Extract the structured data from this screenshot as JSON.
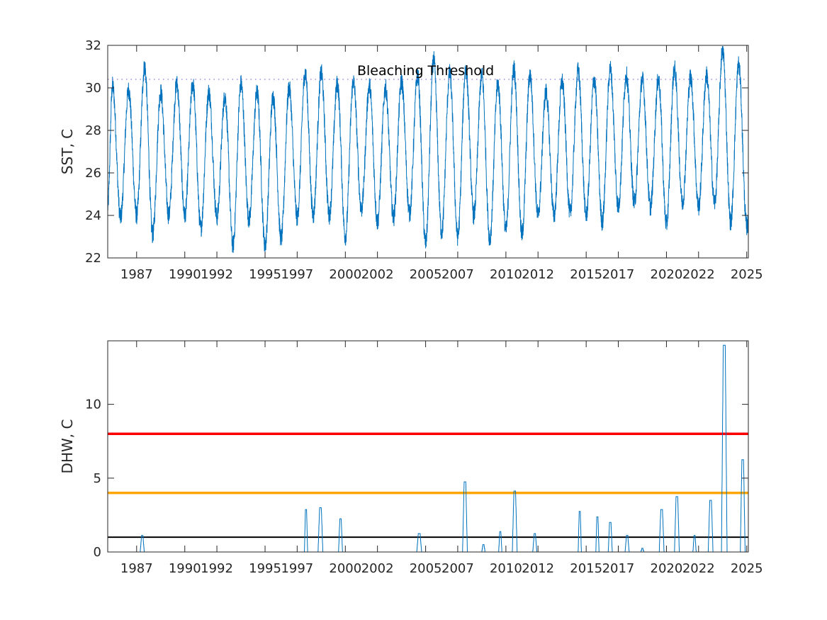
{
  "chart_data": [
    {
      "type": "line",
      "title": "",
      "xlabel": "",
      "ylabel": "SST, C",
      "xlim": [
        1985.2,
        2025.1
      ],
      "ylim": [
        22,
        32
      ],
      "yticks": [
        22,
        24,
        26,
        28,
        30,
        32
      ],
      "xticks": [
        1987,
        1990,
        1992,
        1995,
        1997,
        2000,
        2002,
        2005,
        2007,
        2010,
        2012,
        2015,
        2017,
        2020,
        2022,
        2025
      ],
      "xtick_labels": [
        "1987",
        "1990",
        "1992",
        "1995",
        "1997",
        "2000",
        "2002",
        "2005",
        "2007",
        "2010",
        "2012",
        "2015",
        "2017",
        "2020",
        "2022",
        "2025"
      ],
      "ytick_labels": [
        "22",
        "24",
        "26",
        "28",
        "30",
        "32"
      ],
      "grid": false,
      "threshold": {
        "label": "Bleaching Threshold",
        "value": 30.4,
        "color": "#9370DB"
      },
      "series": [
        {
          "color": "#0072BD",
          "seasonal_peaks": [
            [
              1985.5,
              30.1
            ],
            [
              1986.5,
              29.9
            ],
            [
              1987.5,
              31.0
            ],
            [
              1988.5,
              29.8
            ],
            [
              1989.5,
              30.2
            ],
            [
              1990.5,
              30.2
            ],
            [
              1991.5,
              29.8
            ],
            [
              1992.5,
              29.6
            ],
            [
              1993.5,
              30.2
            ],
            [
              1994.5,
              29.8
            ],
            [
              1995.5,
              29.6
            ],
            [
              1996.5,
              30.0
            ],
            [
              1997.5,
              30.7
            ],
            [
              1998.5,
              30.7
            ],
            [
              1999.5,
              30.2
            ],
            [
              2000.5,
              30.3
            ],
            [
              2001.5,
              30.1
            ],
            [
              2002.5,
              30.0
            ],
            [
              2003.5,
              30.3
            ],
            [
              2004.5,
              30.6
            ],
            [
              2005.5,
              31.3
            ],
            [
              2006.5,
              30.7
            ],
            [
              2007.5,
              30.9
            ],
            [
              2008.5,
              30.6
            ],
            [
              2009.5,
              30.2
            ],
            [
              2010.5,
              30.9
            ],
            [
              2011.5,
              30.6
            ],
            [
              2012.5,
              29.8
            ],
            [
              2013.5,
              30.3
            ],
            [
              2014.5,
              30.8
            ],
            [
              2015.5,
              30.4
            ],
            [
              2016.5,
              30.9
            ],
            [
              2017.5,
              30.6
            ],
            [
              2018.5,
              30.4
            ],
            [
              2019.5,
              30.4
            ],
            [
              2020.5,
              30.9
            ],
            [
              2021.5,
              30.5
            ],
            [
              2022.5,
              30.6
            ],
            [
              2023.5,
              31.8
            ],
            [
              2024.5,
              31.1
            ]
          ],
          "seasonal_troughs": [
            [
              1986.0,
              23.9
            ],
            [
              1987.0,
              24.0
            ],
            [
              1988.0,
              23.1
            ],
            [
              1989.0,
              24.0
            ],
            [
              1990.0,
              24.0
            ],
            [
              1991.0,
              23.4
            ],
            [
              1992.0,
              23.9
            ],
            [
              1993.0,
              22.6
            ],
            [
              1994.0,
              23.8
            ],
            [
              1995.0,
              22.6
            ],
            [
              1996.0,
              22.9
            ],
            [
              1997.0,
              23.9
            ],
            [
              1998.0,
              24.0
            ],
            [
              1999.0,
              24.0
            ],
            [
              2000.0,
              23.0
            ],
            [
              2001.0,
              24.3
            ],
            [
              2002.0,
              23.7
            ],
            [
              2003.0,
              23.9
            ],
            [
              2004.0,
              24.1
            ],
            [
              2005.0,
              22.7
            ],
            [
              2006.0,
              23.2
            ],
            [
              2007.0,
              23.0
            ],
            [
              2008.0,
              24.0
            ],
            [
              2009.0,
              22.9
            ],
            [
              2010.0,
              23.3
            ],
            [
              2011.0,
              23.1
            ],
            [
              2012.0,
              24.0
            ],
            [
              2013.0,
              24.0
            ],
            [
              2014.0,
              24.1
            ],
            [
              2015.0,
              24.0
            ],
            [
              2016.0,
              23.7
            ],
            [
              2017.0,
              24.4
            ],
            [
              2018.0,
              24.6
            ],
            [
              2019.0,
              24.4
            ],
            [
              2020.0,
              23.6
            ],
            [
              2021.0,
              24.6
            ],
            [
              2022.0,
              24.4
            ],
            [
              2023.0,
              24.6
            ],
            [
              2024.0,
              23.7
            ],
            [
              2025.0,
              23.5
            ]
          ]
        }
      ]
    },
    {
      "type": "line",
      "title": "",
      "xlabel": "",
      "ylabel": "DHW, C",
      "xlim": [
        1985.2,
        2025.1
      ],
      "ylim": [
        0,
        14.3
      ],
      "yticks": [
        0,
        5,
        10
      ],
      "xticks": [
        1987,
        1990,
        1992,
        1995,
        1997,
        2000,
        2002,
        2005,
        2007,
        2010,
        2012,
        2015,
        2017,
        2020,
        2022,
        2025
      ],
      "xtick_labels": [
        "1987",
        "1990",
        "1992",
        "1995",
        "1997",
        "2000",
        "2002",
        "2005",
        "2007",
        "2010",
        "2012",
        "2015",
        "2017",
        "2020",
        "2022",
        "2025"
      ],
      "ytick_labels": [
        "0",
        "5",
        "10"
      ],
      "grid": false,
      "reference_lines": [
        {
          "value": 8,
          "color": "#FF0000"
        },
        {
          "value": 4,
          "color": "#FFA500"
        },
        {
          "value": 1,
          "color": "#000000"
        }
      ],
      "series": [
        {
          "color": "#0072BD",
          "events": [
            [
              1987.35,
              1.1,
              0.25
            ],
            [
              1997.55,
              2.9,
              0.2
            ],
            [
              1998.45,
              3.0,
              0.3
            ],
            [
              1999.7,
              2.2,
              0.25
            ],
            [
              2004.6,
              1.3,
              0.3
            ],
            [
              2007.45,
              4.7,
              0.3
            ],
            [
              2008.6,
              0.5,
              0.2
            ],
            [
              2009.65,
              1.4,
              0.2
            ],
            [
              2010.55,
              4.1,
              0.3
            ],
            [
              2011.8,
              1.2,
              0.25
            ],
            [
              2014.6,
              2.7,
              0.2
            ],
            [
              2015.7,
              2.4,
              0.2
            ],
            [
              2016.5,
              2.0,
              0.25
            ],
            [
              2017.55,
              1.1,
              0.25
            ],
            [
              2018.5,
              0.2,
              0.2
            ],
            [
              2019.7,
              2.9,
              0.3
            ],
            [
              2020.65,
              3.7,
              0.3
            ],
            [
              2021.75,
              1.1,
              0.2
            ],
            [
              2022.75,
              3.5,
              0.3
            ],
            [
              2023.6,
              14.0,
              0.35
            ],
            [
              2024.75,
              6.2,
              0.3
            ]
          ]
        }
      ]
    }
  ]
}
